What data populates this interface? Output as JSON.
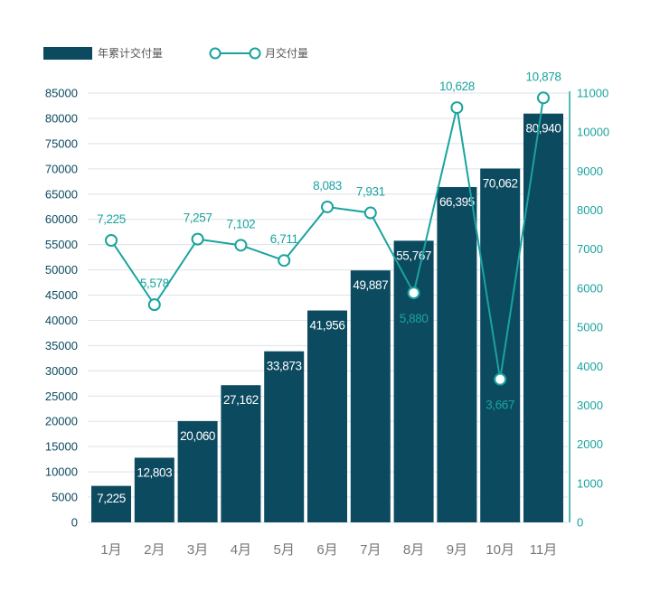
{
  "colors": {
    "bar": "#0c4a60",
    "line": "#1aa39e",
    "left_tick": "#0c4a60",
    "right_tick": "#1aa39e",
    "grid": "#dde3e7",
    "x_tick": "#777777",
    "bar_label": "#ffffff",
    "legend_text": "#555555"
  },
  "legend": {
    "bar_label": "年累计交付量",
    "line_label": "月交付量"
  },
  "chart_data": {
    "type": "bar",
    "categories": [
      "1月",
      "2月",
      "3月",
      "4月",
      "5月",
      "6月",
      "7月",
      "8月",
      "9月",
      "10月",
      "11月"
    ],
    "series": [
      {
        "name": "年累计交付量",
        "type": "bar",
        "axis": "left",
        "values": [
          7225,
          12803,
          20060,
          27162,
          33873,
          41956,
          49887,
          55767,
          66395,
          70062,
          80940
        ],
        "labels": [
          "7,225",
          "12,803",
          "20,060",
          "27,162",
          "33,873",
          "41,956",
          "49,887",
          "55,767",
          "66,395",
          "70,062",
          "80,940"
        ]
      },
      {
        "name": "月交付量",
        "type": "line",
        "axis": "right",
        "values": [
          7225,
          5578,
          7257,
          7102,
          6711,
          8083,
          7931,
          5880,
          10628,
          3667,
          10878
        ],
        "labels": [
          "7,225",
          "5,578",
          "7,257",
          "7,102",
          "6,711",
          "8,083",
          "7,931",
          "5,880",
          "10,628",
          "3,667",
          "10,878"
        ]
      }
    ],
    "left_axis": {
      "ylim": [
        0,
        85000
      ],
      "ticks": [
        0,
        5000,
        10000,
        15000,
        20000,
        25000,
        30000,
        35000,
        40000,
        45000,
        50000,
        55000,
        60000,
        65000,
        70000,
        75000,
        80000,
        85000
      ],
      "tick_labels": [
        "0",
        "5000",
        "10000",
        "15000",
        "20000",
        "25000",
        "30000",
        "35000",
        "40000",
        "45000",
        "50000",
        "55000",
        "60000",
        "65000",
        "70000",
        "75000",
        "80000",
        "85000"
      ]
    },
    "right_axis": {
      "ylim": [
        0,
        11000
      ],
      "ticks": [
        0,
        1000,
        2000,
        3000,
        4000,
        5000,
        6000,
        7000,
        8000,
        9000,
        10000,
        11000
      ],
      "tick_labels": [
        "0",
        "1000",
        "2000",
        "3000",
        "4000",
        "5000",
        "6000",
        "7000",
        "8000",
        "9000",
        "10000",
        "11000"
      ]
    },
    "grid": true,
    "legend_position": "top-left",
    "title": "",
    "xlabel": "",
    "ylabel": ""
  }
}
